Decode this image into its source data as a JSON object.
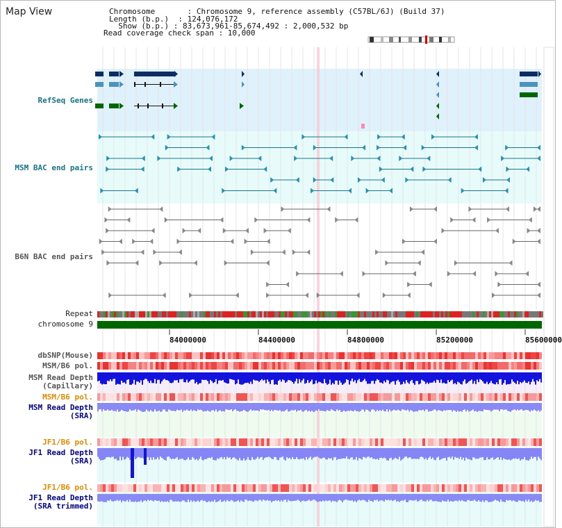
{
  "title": "Map View",
  "header": {
    "line1": "Chromosome       : Chromosome 9, reference assembly (C57BL/6J) (Build 37)",
    "line2": "Length (b.p.)  : 124,076,172",
    "line3": "  Show (b.p.) : 83,673,961-85,674,492 : 2,000,532 bp",
    "line4": "Read coverage check span : 10,000"
  },
  "tracks": {
    "refseq": "RefSeq Genes",
    "msm_bac": "MSM BAC end pairs",
    "b6n_bac": "B6N BAC end pairs",
    "repeat": "Repeat",
    "chromosome": "chromosome 9",
    "dbsnp": "dbSNP(Mouse)",
    "msm_pol": "MSM/B6 pol.",
    "msm_depth_cap_1": "MSM Read Depth",
    "msm_depth_cap_2": "(Capillary)",
    "msm_pol2": "MSM/B6 pol.",
    "msm_depth_sra_1": "MSM Read Depth",
    "msm_depth_sra_2": "(SRA)",
    "jf1_pol": "JF1/B6 pol.",
    "jf1_depth_sra_1": "JF1 Read Depth",
    "jf1_depth_sra_2": "(SRA)",
    "jf1_pol2": "JF1/B6 pol.",
    "jf1_depth_trim_1": "JF1 Read Depth",
    "jf1_depth_trim_2": "(SRA trimmed)"
  },
  "axis": {
    "ticks": [
      "84000000",
      "84400000",
      "84800000",
      "85200000",
      "85600000"
    ]
  },
  "colors": {
    "refseq_bg": "#dff1fb",
    "msm_bg": "#e8fbfb",
    "gene_dark": "#0b2d63",
    "gene_mid": "#4a93bd",
    "gene_green": "#006600",
    "chromosome": "#006600",
    "depth_blue": "#1313dd",
    "depth_light": "#8585f5",
    "label_teal": "#17748a",
    "label_blue": "#00008b",
    "label_orange": "#e08b00"
  }
}
